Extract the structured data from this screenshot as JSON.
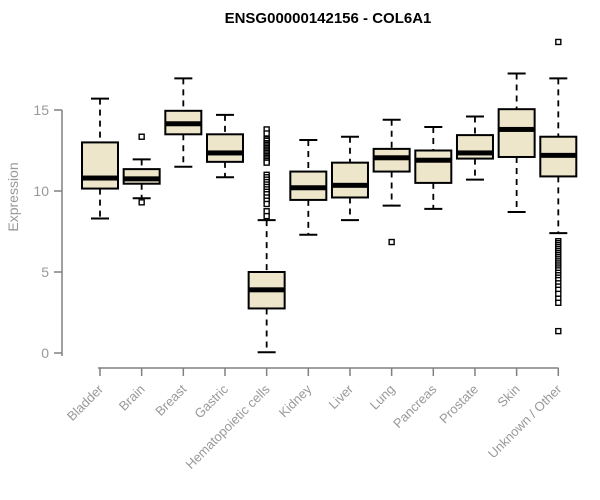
{
  "page": {
    "background": "#ffffff"
  },
  "chart_data": {
    "type": "boxplot",
    "title": "ENSG00000142156 - COL6A1",
    "xlabel": "",
    "ylabel": "Expression",
    "ylim": [
      0,
      15
    ],
    "yticks": [
      0,
      5,
      10,
      15
    ],
    "grid": false,
    "legend": false,
    "categories": [
      "Bladder",
      "Brain",
      "Breast",
      "Gastric",
      "Hematopoietic cells",
      "Kidney",
      "Liver",
      "Lung",
      "Pancreas",
      "Prostate",
      "Skin",
      "Unknown / Other"
    ],
    "series": [
      {
        "name": "Bladder",
        "low": 8.3,
        "q1": 10.15,
        "median": 10.8,
        "q3": 13.0,
        "high": 15.7,
        "outliers": []
      },
      {
        "name": "Brain",
        "low": 9.55,
        "q1": 10.45,
        "median": 10.75,
        "q3": 11.35,
        "high": 11.95,
        "outliers": [
          13.35,
          9.3
        ]
      },
      {
        "name": "Breast",
        "low": 11.5,
        "q1": 13.5,
        "median": 14.15,
        "q3": 14.95,
        "high": 16.95,
        "outliers": []
      },
      {
        "name": "Gastric",
        "low": 10.85,
        "q1": 11.8,
        "median": 12.35,
        "q3": 13.5,
        "high": 14.7,
        "outliers": []
      },
      {
        "name": "Hematopoietic cells",
        "low": 0.05,
        "q1": 2.75,
        "median": 3.9,
        "q3": 5.0,
        "high": 8.2,
        "outliers": [
          13.8,
          13.55,
          13.2,
          13.1,
          12.95,
          12.85,
          12.75,
          12.65,
          12.55,
          12.45,
          12.35,
          12.25,
          12.15,
          12.05,
          11.95,
          11.85,
          11.75,
          11.0,
          10.85,
          10.7,
          10.55,
          10.4,
          10.25,
          10.1,
          9.95,
          9.8,
          9.6,
          9.4,
          9.2,
          8.75,
          8.45
        ]
      },
      {
        "name": "Kidney",
        "low": 7.3,
        "q1": 9.45,
        "median": 10.2,
        "q3": 11.2,
        "high": 13.15,
        "outliers": []
      },
      {
        "name": "Liver",
        "low": 8.2,
        "q1": 9.6,
        "median": 10.35,
        "q3": 11.75,
        "high": 13.35,
        "outliers": []
      },
      {
        "name": "Lung",
        "low": 9.1,
        "q1": 11.2,
        "median": 12.05,
        "q3": 12.6,
        "high": 14.4,
        "outliers": [
          6.85
        ]
      },
      {
        "name": "Pancreas",
        "low": 8.9,
        "q1": 10.5,
        "median": 11.9,
        "q3": 12.5,
        "high": 13.95,
        "outliers": []
      },
      {
        "name": "Prostate",
        "low": 10.7,
        "q1": 12.0,
        "median": 12.35,
        "q3": 13.45,
        "high": 14.6,
        "outliers": []
      },
      {
        "name": "Skin",
        "low": 8.7,
        "q1": 12.1,
        "median": 13.8,
        "q3": 15.05,
        "high": 17.25,
        "outliers": []
      },
      {
        "name": "Unknown / Other",
        "low": 7.4,
        "q1": 10.9,
        "median": 12.2,
        "q3": 13.35,
        "high": 16.95,
        "outliers": [
          19.2,
          6.9,
          6.78,
          6.66,
          6.54,
          6.42,
          6.3,
          6.18,
          6.06,
          5.94,
          5.82,
          5.7,
          5.58,
          5.46,
          5.34,
          5.22,
          5.1,
          4.95,
          4.8,
          4.65,
          4.5,
          4.3,
          4.1,
          3.9,
          3.65,
          3.35,
          3.1,
          1.35
        ]
      }
    ],
    "colors": {
      "box_fill": "#EDE6CB",
      "box_border": "#000000",
      "median": "#000000",
      "whisker": "#000000",
      "outlier_stroke": "#000000",
      "outlier_fill": "#ffffff",
      "axis": "#808080",
      "tick_label": "#999999",
      "title": "#000000"
    }
  }
}
